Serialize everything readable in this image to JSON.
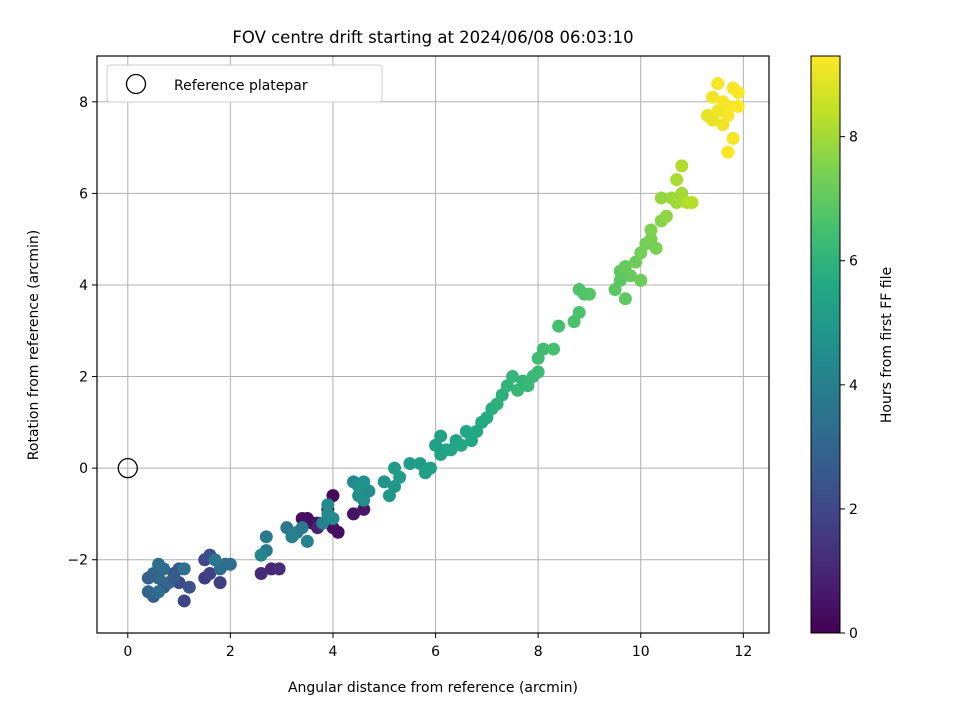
{
  "chart_data": {
    "type": "scatter",
    "title": "FOV centre drift starting at 2024/06/08 06:03:10",
    "xlabel": "Angular distance from reference (arcmin)",
    "ylabel": "Rotation from reference (arcmin)",
    "xlim": [
      -0.6,
      12.5
    ],
    "ylim": [
      -3.6,
      9.0
    ],
    "xticks": [
      0,
      2,
      4,
      6,
      8,
      10,
      12
    ],
    "yticks": [
      -2,
      0,
      2,
      4,
      6,
      8
    ],
    "grid": true,
    "legend": {
      "placement": "top-left",
      "entries": [
        "Reference platepar"
      ]
    },
    "reference_point": {
      "x": 0,
      "y": 0
    },
    "colorbar": {
      "label": "Hours from first FF file",
      "range": [
        0,
        9.3
      ],
      "ticks": [
        0,
        2,
        4,
        6,
        8
      ],
      "colormap": "viridis"
    },
    "points": [
      {
        "x": 3.5,
        "y": -1.1,
        "h": 0.3
      },
      {
        "x": 3.6,
        "y": -1.2,
        "h": 0.3
      },
      {
        "x": 3.4,
        "y": -1.1,
        "h": 0.4
      },
      {
        "x": 3.7,
        "y": -1.2,
        "h": 0.5
      },
      {
        "x": 4.0,
        "y": -0.6,
        "h": 0.2
      },
      {
        "x": 3.9,
        "y": -0.9,
        "h": 0.2
      },
      {
        "x": 4.1,
        "y": -1.4,
        "h": 0.3
      },
      {
        "x": 4.0,
        "y": -1.3,
        "h": 0.4
      },
      {
        "x": 4.4,
        "y": -1.0,
        "h": 0.5
      },
      {
        "x": 4.6,
        "y": -0.9,
        "h": 0.6
      },
      {
        "x": 2.8,
        "y": -2.2,
        "h": 1.0
      },
      {
        "x": 2.6,
        "y": -2.3,
        "h": 1.2
      },
      {
        "x": 2.95,
        "y": -2.2,
        "h": 1.1
      },
      {
        "x": 3.7,
        "y": -1.3,
        "h": 0.9
      },
      {
        "x": 1.5,
        "y": -2.4,
        "h": 1.6
      },
      {
        "x": 1.6,
        "y": -2.3,
        "h": 1.8
      },
      {
        "x": 1.8,
        "y": -2.5,
        "h": 1.7
      },
      {
        "x": 1.5,
        "y": -2.0,
        "h": 2.0
      },
      {
        "x": 1.6,
        "y": -1.9,
        "h": 2.2
      },
      {
        "x": 1.0,
        "y": -2.5,
        "h": 2.0
      },
      {
        "x": 1.1,
        "y": -2.9,
        "h": 1.9
      },
      {
        "x": 1.2,
        "y": -2.6,
        "h": 2.3
      },
      {
        "x": 0.9,
        "y": -2.3,
        "h": 2.4
      },
      {
        "x": 1.0,
        "y": -2.2,
        "h": 2.6
      },
      {
        "x": 0.7,
        "y": -2.6,
        "h": 2.5
      },
      {
        "x": 0.5,
        "y": -2.8,
        "h": 2.8
      },
      {
        "x": 0.4,
        "y": -2.7,
        "h": 3.0
      },
      {
        "x": 0.6,
        "y": -2.4,
        "h": 3.2
      },
      {
        "x": 0.7,
        "y": -2.2,
        "h": 3.3
      },
      {
        "x": 0.5,
        "y": -2.3,
        "h": 3.1
      },
      {
        "x": 0.4,
        "y": -2.4,
        "h": 2.9
      },
      {
        "x": 0.6,
        "y": -2.1,
        "h": 3.4
      },
      {
        "x": 0.8,
        "y": -2.5,
        "h": 3.0
      },
      {
        "x": 0.9,
        "y": -2.4,
        "h": 2.7
      },
      {
        "x": 1.9,
        "y": -2.1,
        "h": 3.2
      },
      {
        "x": 2.0,
        "y": -2.1,
        "h": 3.4
      },
      {
        "x": 1.8,
        "y": -2.2,
        "h": 3.3
      },
      {
        "x": 1.7,
        "y": -2.0,
        "h": 3.6
      },
      {
        "x": 1.1,
        "y": -2.2,
        "h": 3.5
      },
      {
        "x": 0.6,
        "y": -2.7,
        "h": 3.3
      },
      {
        "x": 2.7,
        "y": -1.5,
        "h": 3.8
      },
      {
        "x": 2.7,
        "y": -1.8,
        "h": 3.8
      },
      {
        "x": 2.6,
        "y": -1.9,
        "h": 4.2
      },
      {
        "x": 3.1,
        "y": -1.3,
        "h": 3.7
      },
      {
        "x": 3.3,
        "y": -1.4,
        "h": 3.9
      },
      {
        "x": 3.2,
        "y": -1.5,
        "h": 4.0
      },
      {
        "x": 3.5,
        "y": -1.6,
        "h": 4.1
      },
      {
        "x": 3.4,
        "y": -1.3,
        "h": 3.8
      },
      {
        "x": 3.8,
        "y": -1.2,
        "h": 4.0
      },
      {
        "x": 3.9,
        "y": -1.0,
        "h": 4.3
      },
      {
        "x": 4.0,
        "y": -1.1,
        "h": 4.4
      },
      {
        "x": 3.9,
        "y": -0.8,
        "h": 4.4
      },
      {
        "x": 4.4,
        "y": -0.3,
        "h": 4.3
      },
      {
        "x": 4.5,
        "y": -0.6,
        "h": 4.5
      },
      {
        "x": 4.6,
        "y": -0.7,
        "h": 4.6
      },
      {
        "x": 4.7,
        "y": -0.5,
        "h": 4.5
      },
      {
        "x": 4.6,
        "y": -0.3,
        "h": 4.7
      },
      {
        "x": 4.5,
        "y": -0.4,
        "h": 4.8
      },
      {
        "x": 5.0,
        "y": -0.3,
        "h": 4.8
      },
      {
        "x": 5.2,
        "y": -0.4,
        "h": 4.9
      },
      {
        "x": 5.1,
        "y": -0.6,
        "h": 4.9
      },
      {
        "x": 5.3,
        "y": -0.2,
        "h": 5.0
      },
      {
        "x": 5.2,
        "y": 0.0,
        "h": 5.0
      },
      {
        "x": 5.5,
        "y": 0.1,
        "h": 5.1
      },
      {
        "x": 5.7,
        "y": 0.1,
        "h": 5.1
      },
      {
        "x": 5.8,
        "y": -0.1,
        "h": 5.2
      },
      {
        "x": 5.9,
        "y": 0.0,
        "h": 5.2
      },
      {
        "x": 6.0,
        "y": 0.5,
        "h": 5.2
      },
      {
        "x": 6.1,
        "y": 0.3,
        "h": 5.3
      },
      {
        "x": 6.1,
        "y": 0.7,
        "h": 5.3
      },
      {
        "x": 6.2,
        "y": 0.4,
        "h": 5.4
      },
      {
        "x": 6.3,
        "y": 0.4,
        "h": 5.4
      },
      {
        "x": 6.4,
        "y": 0.6,
        "h": 5.4
      },
      {
        "x": 6.5,
        "y": 0.5,
        "h": 5.5
      },
      {
        "x": 6.6,
        "y": 0.8,
        "h": 5.5
      },
      {
        "x": 6.7,
        "y": 0.6,
        "h": 5.5
      },
      {
        "x": 6.8,
        "y": 0.8,
        "h": 5.6
      },
      {
        "x": 6.9,
        "y": 1.0,
        "h": 5.6
      },
      {
        "x": 7.0,
        "y": 1.1,
        "h": 5.7
      },
      {
        "x": 7.1,
        "y": 1.3,
        "h": 5.8
      },
      {
        "x": 7.2,
        "y": 1.4,
        "h": 5.9
      },
      {
        "x": 7.3,
        "y": 1.6,
        "h": 5.9
      },
      {
        "x": 7.4,
        "y": 1.8,
        "h": 6.0
      },
      {
        "x": 7.5,
        "y": 2.0,
        "h": 6.1
      },
      {
        "x": 7.6,
        "y": 1.7,
        "h": 6.2
      },
      {
        "x": 7.7,
        "y": 1.9,
        "h": 6.1
      },
      {
        "x": 7.8,
        "y": 1.8,
        "h": 6.2
      },
      {
        "x": 7.9,
        "y": 2.0,
        "h": 6.3
      },
      {
        "x": 8.0,
        "y": 2.1,
        "h": 6.3
      },
      {
        "x": 8.0,
        "y": 2.4,
        "h": 6.4
      },
      {
        "x": 8.1,
        "y": 2.6,
        "h": 6.4
      },
      {
        "x": 8.3,
        "y": 2.6,
        "h": 6.5
      },
      {
        "x": 8.4,
        "y": 3.1,
        "h": 6.5
      },
      {
        "x": 8.7,
        "y": 3.2,
        "h": 6.6
      },
      {
        "x": 8.8,
        "y": 3.4,
        "h": 6.6
      },
      {
        "x": 8.8,
        "y": 3.9,
        "h": 6.7
      },
      {
        "x": 8.9,
        "y": 3.8,
        "h": 6.7
      },
      {
        "x": 9.0,
        "y": 3.8,
        "h": 6.8
      },
      {
        "x": 9.5,
        "y": 3.9,
        "h": 6.9
      },
      {
        "x": 9.6,
        "y": 4.1,
        "h": 6.9
      },
      {
        "x": 9.7,
        "y": 3.7,
        "h": 7.0
      },
      {
        "x": 9.6,
        "y": 4.3,
        "h": 7.0
      },
      {
        "x": 9.7,
        "y": 4.4,
        "h": 7.1
      },
      {
        "x": 9.8,
        "y": 4.2,
        "h": 7.1
      },
      {
        "x": 9.9,
        "y": 4.5,
        "h": 7.2
      },
      {
        "x": 10.0,
        "y": 4.1,
        "h": 7.2
      },
      {
        "x": 10.0,
        "y": 4.7,
        "h": 7.3
      },
      {
        "x": 10.1,
        "y": 4.9,
        "h": 7.3
      },
      {
        "x": 10.2,
        "y": 5.0,
        "h": 7.4
      },
      {
        "x": 10.3,
        "y": 4.8,
        "h": 7.4
      },
      {
        "x": 10.2,
        "y": 5.2,
        "h": 7.5
      },
      {
        "x": 10.4,
        "y": 5.4,
        "h": 7.6
      },
      {
        "x": 10.5,
        "y": 5.5,
        "h": 7.7
      },
      {
        "x": 10.4,
        "y": 5.9,
        "h": 7.8
      },
      {
        "x": 10.6,
        "y": 5.9,
        "h": 7.9
      },
      {
        "x": 10.7,
        "y": 5.8,
        "h": 8.0
      },
      {
        "x": 10.8,
        "y": 6.0,
        "h": 8.0
      },
      {
        "x": 10.7,
        "y": 6.3,
        "h": 8.1
      },
      {
        "x": 10.8,
        "y": 6.6,
        "h": 8.2
      },
      {
        "x": 10.9,
        "y": 5.8,
        "h": 8.2
      },
      {
        "x": 11.0,
        "y": 5.8,
        "h": 8.3
      },
      {
        "x": 11.3,
        "y": 7.7,
        "h": 9.0
      },
      {
        "x": 11.4,
        "y": 7.6,
        "h": 9.0
      },
      {
        "x": 11.5,
        "y": 7.8,
        "h": 9.1
      },
      {
        "x": 11.4,
        "y": 8.1,
        "h": 9.1
      },
      {
        "x": 11.5,
        "y": 8.4,
        "h": 9.2
      },
      {
        "x": 11.6,
        "y": 8.0,
        "h": 9.2
      },
      {
        "x": 11.7,
        "y": 7.9,
        "h": 9.2
      },
      {
        "x": 11.8,
        "y": 8.3,
        "h": 9.2
      },
      {
        "x": 11.9,
        "y": 8.2,
        "h": 9.3
      },
      {
        "x": 11.9,
        "y": 7.9,
        "h": 9.3
      },
      {
        "x": 11.8,
        "y": 7.2,
        "h": 9.2
      },
      {
        "x": 11.7,
        "y": 6.9,
        "h": 9.3
      },
      {
        "x": 11.6,
        "y": 7.5,
        "h": 9.1
      },
      {
        "x": 11.7,
        "y": 7.7,
        "h": 9.2
      }
    ]
  }
}
